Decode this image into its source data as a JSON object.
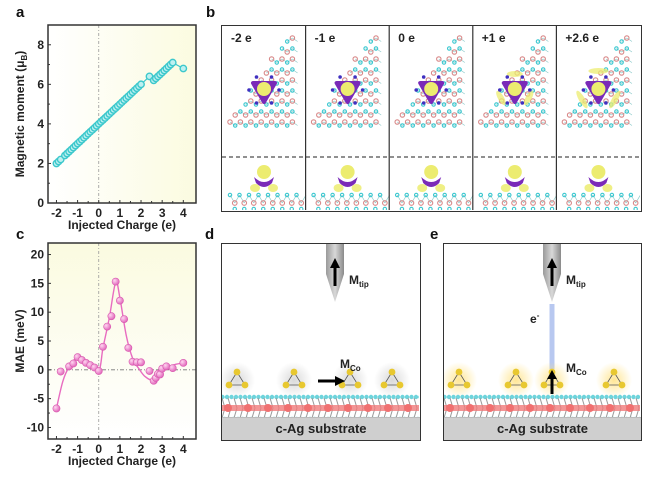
{
  "panels": {
    "a": "a",
    "b": "b",
    "c": "c",
    "d": "d",
    "e": "e"
  },
  "chart_data": [
    {
      "id": "a",
      "type": "line",
      "title": "",
      "xlabel": "Injected Charge (e)",
      "ylabel": "Magnetic moment (μB)",
      "ylabel_main": "Magnetic moment (μ",
      "ylabel_sub": "B",
      "ylabel_end": ")",
      "xlim": [
        -2.4,
        4.6
      ],
      "ylim": [
        0,
        9
      ],
      "xticks": [
        -2,
        -1,
        0,
        1,
        2,
        3,
        4
      ],
      "yticks": [
        0,
        2,
        4,
        6,
        8
      ],
      "color": "#3cc8cc",
      "background_gradient": [
        "#ffffff",
        "#fbfbe0"
      ],
      "vline_x": 0,
      "x": [
        -2.0,
        -1.9,
        -1.8,
        -1.6,
        -1.5,
        -1.4,
        -1.3,
        -1.2,
        -1.1,
        -1.0,
        -0.9,
        -0.8,
        -0.7,
        -0.6,
        -0.5,
        -0.4,
        -0.3,
        -0.2,
        -0.1,
        0.0,
        0.1,
        0.2,
        0.3,
        0.4,
        0.5,
        0.6,
        0.7,
        0.8,
        0.9,
        1.0,
        1.1,
        1.2,
        1.3,
        1.4,
        1.5,
        1.6,
        1.7,
        1.8,
        1.9,
        2.0,
        2.4,
        2.6,
        2.7,
        2.8,
        2.9,
        3.0,
        3.1,
        3.2,
        3.3,
        3.4,
        3.5,
        4.0
      ],
      "y": [
        2.0,
        2.1,
        2.2,
        2.4,
        2.5,
        2.6,
        2.7,
        2.8,
        2.9,
        3.0,
        3.1,
        3.2,
        3.3,
        3.4,
        3.5,
        3.6,
        3.7,
        3.8,
        3.9,
        4.0,
        4.1,
        4.2,
        4.3,
        4.4,
        4.5,
        4.6,
        4.7,
        4.8,
        4.9,
        5.0,
        5.1,
        5.2,
        5.3,
        5.4,
        5.5,
        5.6,
        5.7,
        5.8,
        5.9,
        6.0,
        6.4,
        6.2,
        6.3,
        6.4,
        6.5,
        6.6,
        6.7,
        6.8,
        6.9,
        7.0,
        7.1,
        6.8
      ]
    },
    {
      "id": "c",
      "type": "scatter",
      "title": "",
      "xlabel": "Injected Charge (e)",
      "ylabel": "MAE (meV)",
      "xlim": [
        -2.4,
        4.6
      ],
      "ylim": [
        -12,
        22
      ],
      "xticks": [
        -2,
        -1,
        0,
        1,
        2,
        3,
        4
      ],
      "yticks": [
        -10,
        -5,
        0,
        5,
        10,
        15,
        20
      ],
      "color": "#e86cc0",
      "background_gradient": [
        "#fbfbe0",
        "#ffffff"
      ],
      "vline_x": 0,
      "hline_y": 0,
      "x": [
        -2.0,
        -1.8,
        -1.4,
        -1.2,
        -1.0,
        -0.8,
        -0.6,
        -0.4,
        -0.2,
        0.0,
        0.2,
        0.4,
        0.6,
        0.8,
        1.0,
        1.2,
        1.4,
        1.6,
        1.8,
        2.0,
        2.4,
        2.6,
        2.7,
        2.8,
        2.9,
        3.0,
        3.2,
        3.5,
        4.0
      ],
      "y": [
        -6.7,
        -0.3,
        0.6,
        1.1,
        2.2,
        1.7,
        1.2,
        0.8,
        0.4,
        -0.2,
        4.0,
        7.5,
        9.3,
        15.3,
        12.0,
        8.8,
        3.8,
        1.4,
        1.3,
        1.3,
        -0.2,
        -1.9,
        -1.4,
        -0.7,
        -0.8,
        0.2,
        0.6,
        0.3,
        1.2
      ],
      "fit_curve": {
        "x": [
          -2.0,
          -1.7,
          -1.4,
          -1.0,
          -0.5,
          0.0,
          0.2,
          0.5,
          0.8,
          1.0,
          1.3,
          1.6,
          1.9,
          2.2,
          2.6,
          3.0,
          3.5,
          4.0
        ],
        "y": [
          -6.7,
          -2.0,
          0.5,
          2.1,
          0.9,
          -0.2,
          3.8,
          9.0,
          15.2,
          12.5,
          6.0,
          2.0,
          0.2,
          -1.2,
          -1.8,
          -0.4,
          0.8,
          1.2
        ]
      }
    }
  ],
  "panel_b": {
    "states": [
      "-2 e",
      "-1 e",
      "0 e",
      "+1 e",
      "+2.6 e"
    ],
    "colors": {
      "atom_pink": "#d88888",
      "atom_cyan": "#3cc8d0",
      "iso_yellow": "#ecec70",
      "iso_purple": "#7a2ab8"
    }
  },
  "panel_d": {
    "tip_label": "M",
    "tip_sub": "tip",
    "co_label": "M",
    "co_sub": "Co",
    "substrate": "c-Ag substrate"
  },
  "panel_e": {
    "tip_label": "M",
    "tip_sub": "tip",
    "co_label": "M",
    "co_sub": "Co",
    "electron_label": "e",
    "electron_sup": "-",
    "substrate": "c-Ag substrate"
  }
}
